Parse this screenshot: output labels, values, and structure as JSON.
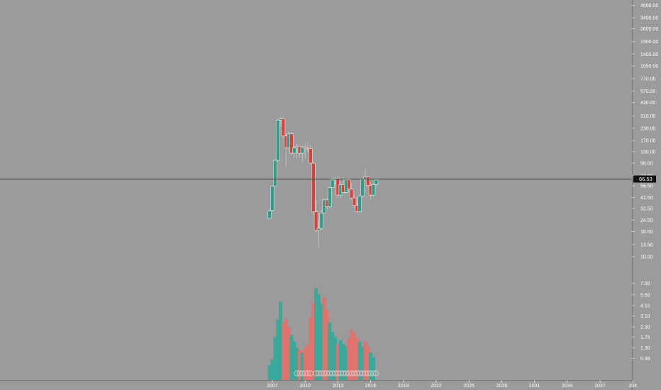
{
  "chart_data": {
    "type": "candlestick",
    "timeframe": "quarterly",
    "price_axis": {
      "scale": "log",
      "tick_labels": [
        "4600.00",
        "3400.00",
        "2600.00",
        "1900.00",
        "1400.00",
        "1050.00",
        "770.00",
        "570.00",
        "430.00",
        "310.00",
        "230.00",
        "170.00",
        "130.00",
        "98.00",
        "72.00",
        "56.50",
        "42.50",
        "32.50",
        "24.50",
        "18.50",
        "13.50",
        "10.00"
      ],
      "range": [
        7.6,
        4800
      ]
    },
    "volume_axis": {
      "scale": "log",
      "tick_labels": [
        "7.50",
        "5.50",
        "4.10",
        "3.10",
        "2.30",
        "1.75",
        "1.30",
        "0.98"
      ],
      "range": [
        0.74,
        8.2
      ]
    },
    "time_axis": {
      "tick_labels": [
        "2007",
        "2010",
        "2013",
        "2016",
        "2019",
        "2022",
        "2025",
        "2028",
        "2031",
        "2034",
        "2037",
        "204"
      ]
    },
    "last_price": {
      "label": "66.53",
      "value": 66.53
    },
    "colors": {
      "background": "#9b9b9b",
      "up": "#2e9e8a",
      "down": "#d9423a",
      "up_volume": "#39a99b",
      "down_volume": "#e0736d",
      "axis_text": "#ffffff",
      "price_line": "#333333"
    },
    "candles": [
      {
        "t": 2006.75,
        "o": 25.5,
        "h": 32,
        "l": 24.8,
        "c": 30.5
      },
      {
        "t": 2007.0,
        "o": 31,
        "h": 57,
        "l": 30,
        "c": 56
      },
      {
        "t": 2007.25,
        "o": 56,
        "h": 110,
        "l": 55,
        "c": 105
      },
      {
        "t": 2007.5,
        "o": 105,
        "h": 290,
        "l": 100,
        "c": 280
      },
      {
        "t": 2007.75,
        "o": 280,
        "h": 305,
        "l": 240,
        "c": 290
      },
      {
        "t": 2008.0,
        "o": 290,
        "h": 300,
        "l": 180,
        "c": 190
      },
      {
        "t": 2008.25,
        "o": 190,
        "h": 200,
        "l": 90,
        "c": 142
      },
      {
        "t": 2008.5,
        "o": 142,
        "h": 210,
        "l": 135,
        "c": 200
      },
      {
        "t": 2008.75,
        "o": 200,
        "h": 210,
        "l": 120,
        "c": 125
      },
      {
        "t": 2009.0,
        "o": 125,
        "h": 148,
        "l": 112,
        "c": 142
      },
      {
        "t": 2009.25,
        "o": 142,
        "h": 160,
        "l": 110,
        "c": 148
      },
      {
        "t": 2009.5,
        "o": 148,
        "h": 152,
        "l": 115,
        "c": 125
      },
      {
        "t": 2009.75,
        "o": 125,
        "h": 150,
        "l": 100,
        "c": 145
      },
      {
        "t": 2010.0,
        "o": 145,
        "h": 158,
        "l": 110,
        "c": 141
      },
      {
        "t": 2010.25,
        "o": 141,
        "h": 165,
        "l": 128,
        "c": 140
      },
      {
        "t": 2010.5,
        "o": 140,
        "h": 155,
        "l": 95,
        "c": 98
      },
      {
        "t": 2010.75,
        "o": 98,
        "h": 102,
        "l": 28,
        "c": 30
      },
      {
        "t": 2011.0,
        "o": 30,
        "h": 40,
        "l": 18,
        "c": 19
      },
      {
        "t": 2011.25,
        "o": 19,
        "h": 24,
        "l": 12.5,
        "c": 20
      },
      {
        "t": 2011.5,
        "o": 20,
        "h": 32,
        "l": 19,
        "c": 29
      },
      {
        "t": 2011.75,
        "o": 29,
        "h": 42,
        "l": 28,
        "c": 40
      },
      {
        "t": 2012.0,
        "o": 40,
        "h": 43,
        "l": 32,
        "c": 34
      },
      {
        "t": 2012.25,
        "o": 34,
        "h": 55,
        "l": 33,
        "c": 54
      },
      {
        "t": 2012.5,
        "o": 54,
        "h": 70,
        "l": 53,
        "c": 65
      },
      {
        "t": 2012.75,
        "o": 65,
        "h": 70,
        "l": 58,
        "c": 68
      },
      {
        "t": 2013.0,
        "o": 68,
        "h": 72,
        "l": 42,
        "c": 45
      },
      {
        "t": 2013.25,
        "o": 45,
        "h": 62,
        "l": 42,
        "c": 58
      },
      {
        "t": 2013.5,
        "o": 58,
        "h": 70,
        "l": 47,
        "c": 48
      },
      {
        "t": 2013.75,
        "o": 48,
        "h": 68,
        "l": 46,
        "c": 65
      },
      {
        "t": 2014.0,
        "o": 65,
        "h": 70,
        "l": 48,
        "c": 52
      },
      {
        "t": 2014.25,
        "o": 52,
        "h": 60,
        "l": 40,
        "c": 42
      },
      {
        "t": 2014.5,
        "o": 42,
        "h": 45,
        "l": 33,
        "c": 35
      },
      {
        "t": 2014.75,
        "o": 35,
        "h": 38,
        "l": 28,
        "c": 30
      },
      {
        "t": 2015.0,
        "o": 30,
        "h": 46,
        "l": 29,
        "c": 44
      },
      {
        "t": 2015.25,
        "o": 44,
        "h": 68,
        "l": 42,
        "c": 66
      },
      {
        "t": 2015.5,
        "o": 66,
        "h": 85,
        "l": 64,
        "c": 70
      },
      {
        "t": 2015.75,
        "o": 70,
        "h": 72,
        "l": 55,
        "c": 57
      },
      {
        "t": 2016.0,
        "o": 57,
        "h": 60,
        "l": 40,
        "c": 45
      },
      {
        "t": 2016.25,
        "o": 45,
        "h": 60,
        "l": 43,
        "c": 58
      },
      {
        "t": 2016.5,
        "o": 58,
        "h": 66,
        "l": 55,
        "c": 65
      }
    ],
    "volumes": [
      {
        "t": 2006.75,
        "v": 0.82,
        "dir": "up"
      },
      {
        "t": 2007.0,
        "v": 0.95,
        "dir": "up"
      },
      {
        "t": 2007.25,
        "v": 1.75,
        "dir": "up"
      },
      {
        "t": 2007.5,
        "v": 2.8,
        "dir": "up"
      },
      {
        "t": 2007.75,
        "v": 4.6,
        "dir": "up"
      },
      {
        "t": 2008.0,
        "v": 2.6,
        "dir": "down"
      },
      {
        "t": 2008.25,
        "v": 2.9,
        "dir": "down"
      },
      {
        "t": 2008.5,
        "v": 2.3,
        "dir": "down"
      },
      {
        "t": 2008.75,
        "v": 1.85,
        "dir": "up"
      },
      {
        "t": 2009.0,
        "v": 1.55,
        "dir": "up"
      },
      {
        "t": 2009.25,
        "v": 1.3,
        "dir": "up"
      },
      {
        "t": 2009.5,
        "v": 1.25,
        "dir": "down"
      },
      {
        "t": 2009.75,
        "v": 1.15,
        "dir": "up"
      },
      {
        "t": 2010.0,
        "v": 1.3,
        "dir": "down"
      },
      {
        "t": 2010.25,
        "v": 1.45,
        "dir": "down"
      },
      {
        "t": 2010.5,
        "v": 3.0,
        "dir": "down"
      },
      {
        "t": 2010.75,
        "v": 4.5,
        "dir": "down"
      },
      {
        "t": 2011.0,
        "v": 6.6,
        "dir": "up"
      },
      {
        "t": 2011.25,
        "v": 5.6,
        "dir": "up"
      },
      {
        "t": 2011.5,
        "v": 4.3,
        "dir": "up"
      },
      {
        "t": 2011.75,
        "v": 5.2,
        "dir": "down"
      },
      {
        "t": 2012.0,
        "v": 3.6,
        "dir": "down"
      },
      {
        "t": 2012.25,
        "v": 2.6,
        "dir": "up"
      },
      {
        "t": 2012.5,
        "v": 2.0,
        "dir": "up"
      },
      {
        "t": 2012.75,
        "v": 1.75,
        "dir": "up"
      },
      {
        "t": 2013.0,
        "v": 1.45,
        "dir": "down"
      },
      {
        "t": 2013.25,
        "v": 1.6,
        "dir": "up"
      },
      {
        "t": 2013.5,
        "v": 1.45,
        "dir": "up"
      },
      {
        "t": 2013.75,
        "v": 1.35,
        "dir": "up"
      },
      {
        "t": 2014.0,
        "v": 1.7,
        "dir": "down"
      },
      {
        "t": 2014.25,
        "v": 2.15,
        "dir": "down"
      },
      {
        "t": 2014.5,
        "v": 1.95,
        "dir": "down"
      },
      {
        "t": 2014.75,
        "v": 1.75,
        "dir": "down"
      },
      {
        "t": 2015.0,
        "v": 1.55,
        "dir": "up"
      },
      {
        "t": 2015.25,
        "v": 1.35,
        "dir": "up"
      },
      {
        "t": 2015.5,
        "v": 1.55,
        "dir": "down"
      },
      {
        "t": 2015.75,
        "v": 1.35,
        "dir": "down"
      },
      {
        "t": 2016.0,
        "v": 1.15,
        "dir": "up"
      },
      {
        "t": 2016.25,
        "v": 1.02,
        "dir": "up"
      }
    ],
    "event_markers": {
      "symbol": "●",
      "t": [
        2009.25,
        2009.5,
        2009.75,
        2010.0,
        2010.25,
        2010.5,
        2011.0,
        2011.25,
        2011.5,
        2011.75,
        2012.0,
        2012.25,
        2012.5,
        2012.75,
        2013.0,
        2013.25,
        2013.5,
        2013.75,
        2014.0,
        2014.25,
        2014.5,
        2014.75,
        2015.0,
        2015.25,
        2015.5,
        2015.75,
        2016.0,
        2016.25,
        2016.5
      ]
    }
  }
}
